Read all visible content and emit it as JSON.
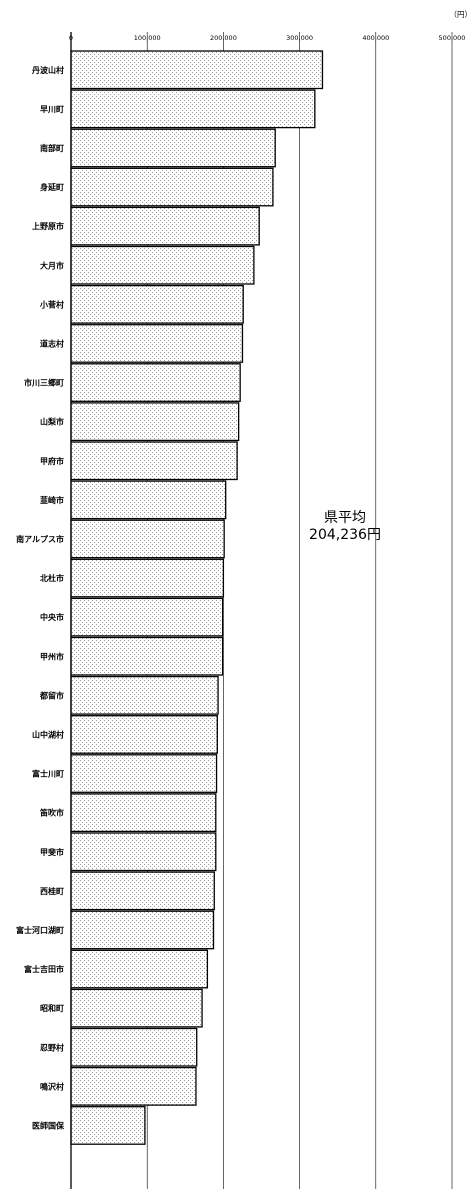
{
  "chart_data": {
    "type": "bar",
    "orientation": "horizontal",
    "unit": "（円）",
    "xlim": [
      0,
      500000
    ],
    "xticks": [
      0,
      100000,
      200000,
      300000,
      400000,
      500000
    ],
    "xtick_labels": [
      "0",
      "100,000",
      "200,000",
      "300,000",
      "400,000",
      "500,000"
    ],
    "grid": "vertical",
    "categories": [
      "丹波山村",
      "早川町",
      "南部町",
      "身延町",
      "上野原市",
      "大月市",
      "小菅村",
      "道志村",
      "市川三郷町",
      "山梨市",
      "甲府市",
      "韮崎市",
      "南アルプス市",
      "北杜市",
      "中央市",
      "甲州市",
      "都留市",
      "山中湖村",
      "富士川町",
      "笛吹市",
      "甲斐市",
      "西桂町",
      "富士河口湖町",
      "富士吉田市",
      "昭和町",
      "忍野村",
      "鳴沢村",
      "医師国保"
    ],
    "values": [
      330000,
      320000,
      268000,
      265000,
      247000,
      240000,
      226000,
      225000,
      222000,
      220000,
      218000,
      203000,
      201000,
      200000,
      199000,
      199000,
      193000,
      192000,
      191000,
      190000,
      190000,
      188000,
      187000,
      179000,
      172000,
      165000,
      164000,
      97000
    ],
    "average_label": "県平均",
    "average_value_text": "204,236円",
    "average": 204236,
    "bar_pattern": "light-gray stipple"
  }
}
